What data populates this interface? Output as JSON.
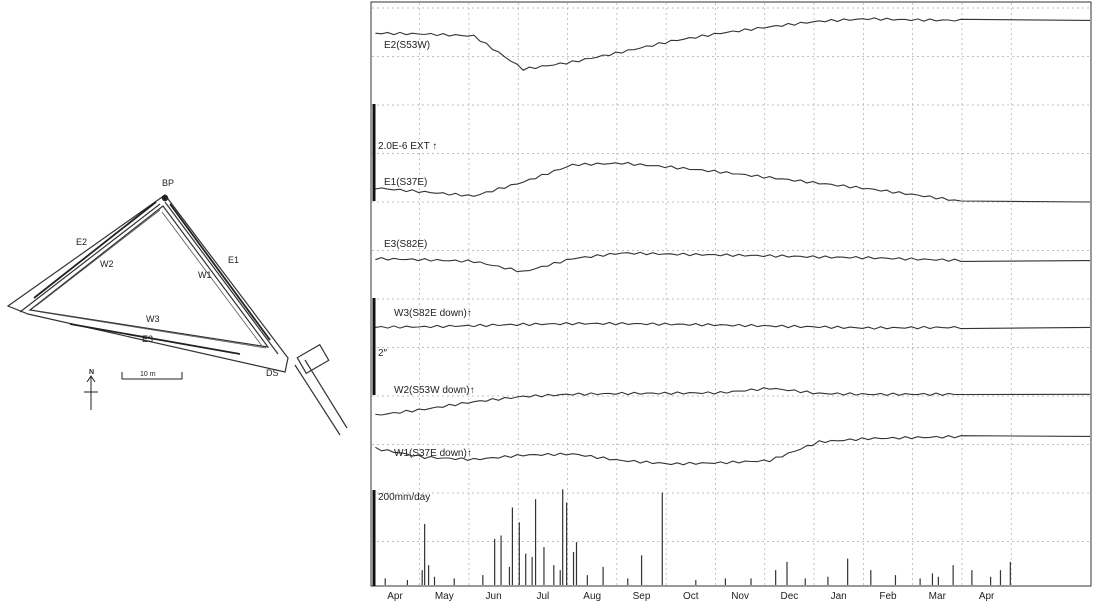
{
  "map": {
    "labels": {
      "bp": "BP",
      "ds": "DS",
      "e1": "E1",
      "e2": "E2",
      "e3": "E3",
      "w1": "W1",
      "w2": "W2",
      "w3": "W3",
      "north": "N",
      "scale": "10 m"
    }
  },
  "chart_data": {
    "type": "line",
    "x": [
      "Apr",
      "May",
      "Jun",
      "Jul",
      "Aug",
      "Sep",
      "Oct",
      "Nov",
      "Dec",
      "Jan",
      "Feb",
      "Mar",
      "Apr"
    ],
    "scale_labels": {
      "strain": "2.0E-6  EXT ↑",
      "tilt": "2″",
      "rain": "200mm/day"
    },
    "series": [
      {
        "name": "E2(S53W)",
        "color": "#333333",
        "values": [
          0.62,
          0.6,
          0.55,
          -0.28,
          -0.1,
          0.15,
          0.42,
          0.62,
          0.78,
          0.92,
          0.98,
          0.95,
          0.94
        ]
      },
      {
        "name": "E1(S37E)",
        "color": "#333333",
        "values": [
          0.3,
          0.2,
          0.1,
          0.45,
          0.88,
          0.92,
          0.82,
          0.7,
          0.56,
          0.42,
          0.28,
          0.12,
          -0.05
        ]
      },
      {
        "name": "E3(S82E)",
        "color": "#333333",
        "values": [
          0.12,
          0.08,
          0.02,
          -0.35,
          0.12,
          0.32,
          0.28,
          0.25,
          0.22,
          0.18,
          0.15,
          0.1,
          0.05
        ]
      },
      {
        "name": "W3(S82E down)↑",
        "color": "#333333",
        "values": [
          0.35,
          0.4,
          0.55,
          0.7,
          0.8,
          0.8,
          0.72,
          0.62,
          0.5,
          0.38,
          0.25,
          0.3,
          0.32
        ]
      },
      {
        "name": "W2(S53W down)↑",
        "color": "#333333",
        "values": [
          -0.35,
          0.05,
          0.55,
          0.9,
          1.05,
          1.1,
          1.12,
          1.15,
          1.45,
          1.1,
          1.05,
          1.05,
          1.05
        ]
      },
      {
        "name": "W1(S37E down)↑",
        "color": "#333333",
        "values": [
          0.75,
          0.35,
          0.25,
          0.45,
          0.5,
          0.2,
          0.05,
          0.1,
          0.2,
          1.05,
          1.2,
          1.25,
          1.3
        ]
      }
    ],
    "rainfall": {
      "unit": "mm/day",
      "events": [
        [
          0.2,
          20
        ],
        [
          0.65,
          15
        ],
        [
          0.95,
          45
        ],
        [
          1.0,
          185
        ],
        [
          1.08,
          60
        ],
        [
          1.2,
          25
        ],
        [
          1.6,
          20
        ],
        [
          2.18,
          30
        ],
        [
          2.42,
          140
        ],
        [
          2.55,
          150
        ],
        [
          2.72,
          55
        ],
        [
          2.78,
          235
        ],
        [
          2.92,
          190
        ],
        [
          3.05,
          95
        ],
        [
          3.18,
          85
        ],
        [
          3.25,
          260
        ],
        [
          3.42,
          115
        ],
        [
          3.62,
          60
        ],
        [
          3.75,
          45
        ],
        [
          3.8,
          290
        ],
        [
          3.88,
          250
        ],
        [
          4.02,
          100
        ],
        [
          4.08,
          130
        ],
        [
          4.3,
          30
        ],
        [
          4.62,
          55
        ],
        [
          5.12,
          20
        ],
        [
          5.4,
          90
        ],
        [
          5.82,
          280
        ],
        [
          6.5,
          15
        ],
        [
          7.1,
          20
        ],
        [
          7.62,
          20
        ],
        [
          8.12,
          45
        ],
        [
          8.35,
          70
        ],
        [
          8.72,
          20
        ],
        [
          9.18,
          25
        ],
        [
          9.58,
          80
        ],
        [
          10.05,
          45
        ],
        [
          10.55,
          30
        ],
        [
          11.05,
          20
        ],
        [
          11.3,
          35
        ],
        [
          11.42,
          25
        ],
        [
          11.72,
          60
        ],
        [
          12.1,
          45
        ],
        [
          12.48,
          25
        ],
        [
          12.68,
          45
        ],
        [
          12.88,
          70
        ]
      ]
    }
  }
}
